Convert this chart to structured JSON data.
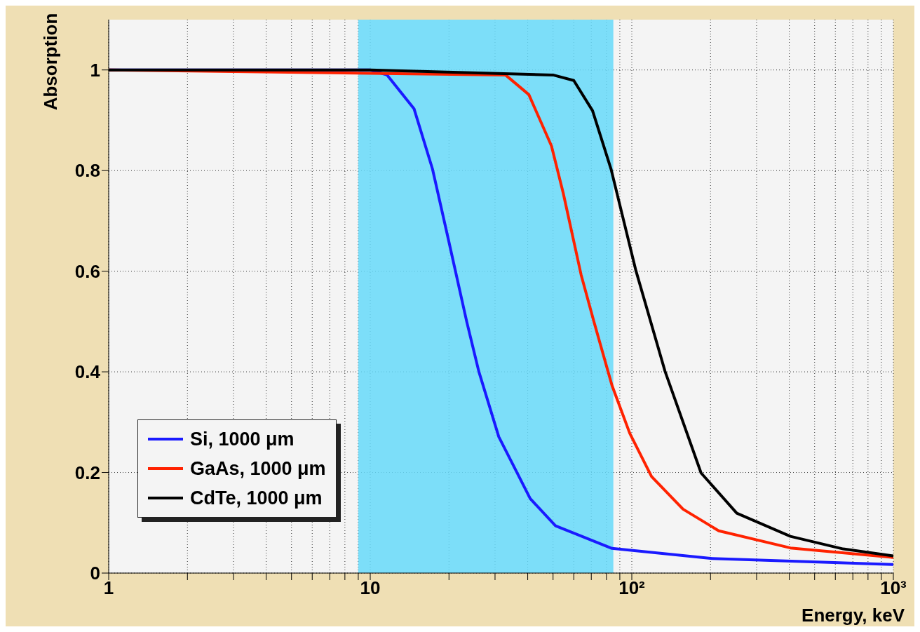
{
  "chart_data": {
    "type": "line",
    "xlabel": "Energy, keV",
    "ylabel": "Absorption",
    "log": "x",
    "xlim": [
      1,
      1000
    ],
    "ylim": [
      0,
      1.1
    ],
    "xticks": [
      1,
      {
        "value": 2,
        "label": null
      },
      {
        "value": 3,
        "label": null
      },
      {
        "value": 4,
        "label": null
      },
      {
        "value": 5,
        "label": null
      },
      {
        "value": 6,
        "label": null
      },
      {
        "value": 7,
        "label": null
      },
      {
        "value": 8,
        "label": null
      },
      {
        "value": 9,
        "label": null
      },
      10,
      {
        "value": 20,
        "label": null
      },
      {
        "value": 30,
        "label": null
      },
      {
        "value": 40,
        "label": null
      },
      {
        "value": 50,
        "label": null
      },
      {
        "value": 60,
        "label": null
      },
      {
        "value": 70,
        "label": null
      },
      {
        "value": 80,
        "label": null
      },
      {
        "value": 90,
        "label": null
      },
      {
        "value": 100,
        "label": "10²"
      },
      {
        "value": 200,
        "label": null
      },
      {
        "value": 300,
        "label": null
      },
      {
        "value": 400,
        "label": null
      },
      {
        "value": 500,
        "label": null
      },
      {
        "value": 600,
        "label": null
      },
      {
        "value": 700,
        "label": null
      },
      {
        "value": 800,
        "label": null
      },
      {
        "value": 900,
        "label": null
      },
      {
        "value": 1000,
        "label": "10³"
      }
    ],
    "yticks": [
      0,
      0.2,
      0.4,
      0.6,
      0.8,
      1
    ],
    "grid": true,
    "legend": "bottom left",
    "marker": "none",
    "line_style": "solid",
    "bands": [
      {
        "axis": "x",
        "from": 9,
        "to": 85,
        "color": "#66d9f9"
      }
    ],
    "series": [
      {
        "name": "Si, 1000 μm",
        "color": "#1a1aff",
        "x": [
          1,
          10,
          11.6,
          14.7,
          17.3,
          19.9,
          23.4,
          26,
          31,
          40.9,
          51.1,
          84,
          203,
          1000
        ],
        "values": [
          1,
          1,
          0.99,
          0.923,
          0.803,
          0.663,
          0.499,
          0.401,
          0.271,
          0.148,
          0.094,
          0.049,
          0.029,
          0.017
        ]
      },
      {
        "name": "GaAs, 1000 μm",
        "color": "#ff2200",
        "x": [
          1,
          32.9,
          40.4,
          49.3,
          54.7,
          64,
          71.7,
          84,
          98.2,
          119,
          157,
          215,
          404,
          1000
        ],
        "values": [
          1,
          0.99,
          0.951,
          0.849,
          0.755,
          0.593,
          0.499,
          0.373,
          0.278,
          0.192,
          0.127,
          0.084,
          0.05,
          0.031
        ]
      },
      {
        "name": "CdTe, 1000 μm",
        "color": "#000000",
        "x": [
          1,
          10,
          50,
          60,
          70.8,
          83.3,
          103.7,
          134,
          184,
          252,
          404,
          643,
          1000
        ],
        "values": [
          1,
          1,
          0.99,
          0.979,
          0.919,
          0.803,
          0.601,
          0.401,
          0.199,
          0.119,
          0.073,
          0.048,
          0.034
        ]
      }
    ]
  }
}
